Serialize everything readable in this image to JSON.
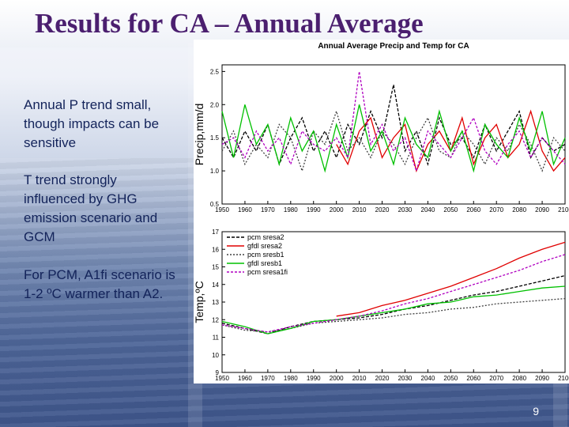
{
  "slide": {
    "title": "Results for CA – Annual Average",
    "bullets": [
      "Annual P trend small, though impacts can be sensitive",
      "T trend strongly influenced by GHG emission scenario and GCM",
      "For PCM, A1fi scenario is 1-2 ºC warmer than A2."
    ],
    "slide_number": "9"
  },
  "colors": {
    "title": "#4b1f6f",
    "bullet_text": "#13235a",
    "pcm_sresa2": "#000000",
    "gfdl_sresa2": "#e00000",
    "pcm_sresb1": "#404040",
    "gfdl_sresb1": "#00c000",
    "pcm_sresa1fi": "#b000c0"
  },
  "chart_data": [
    {
      "type": "line",
      "title": "Annual Average Precip and Temp for CA",
      "ylabel": "Precip,mm/d",
      "xlabel": "",
      "xlim": [
        1950,
        2100
      ],
      "ylim": [
        0.5,
        2.6
      ],
      "xticks": [
        1950,
        1960,
        1970,
        1980,
        1990,
        2000,
        2010,
        2020,
        2030,
        2040,
        2050,
        2060,
        2070,
        2080,
        2090,
        2100
      ],
      "xtick_labels": [
        "1950",
        "1960",
        "1970",
        "1980",
        "1990",
        "2000",
        "2010",
        "2020",
        "2030",
        "2040",
        "2050",
        "2060",
        "2070",
        "2080",
        "2090",
        "2100"
      ],
      "yticks": [
        0.5,
        1.0,
        1.5,
        2.0,
        2.5
      ],
      "ytick_labels": [
        "0.5",
        "1.0",
        "1.5",
        "2.0",
        "2.5"
      ],
      "grid": false,
      "series": [
        {
          "name": "pcm sresa2",
          "color": "#000000",
          "dash": "4,2",
          "x": [
            1950,
            1955,
            1960,
            1965,
            1970,
            1975,
            1980,
            1985,
            1990,
            1995,
            2000,
            2005,
            2010,
            2015,
            2020,
            2025,
            2030,
            2035,
            2040,
            2045,
            2050,
            2055,
            2060,
            2065,
            2070,
            2075,
            2080,
            2085,
            2090,
            2095,
            2100
          ],
          "values": [
            1.5,
            1.2,
            1.6,
            1.3,
            1.7,
            1.1,
            1.5,
            1.8,
            1.3,
            1.6,
            1.2,
            1.7,
            1.4,
            1.9,
            1.5,
            2.3,
            1.3,
            1.6,
            1.1,
            1.8,
            1.4,
            1.5,
            1.2,
            1.7,
            1.3,
            1.6,
            1.9,
            1.2,
            1.5,
            1.3,
            1.4
          ]
        },
        {
          "name": "gfdl sresa2",
          "color": "#e00000",
          "dash": "",
          "x": [
            2000,
            2005,
            2010,
            2015,
            2020,
            2025,
            2030,
            2035,
            2040,
            2045,
            2050,
            2055,
            2060,
            2065,
            2070,
            2075,
            2080,
            2085,
            2090,
            2095,
            2100
          ],
          "values": [
            1.4,
            1.1,
            1.6,
            1.8,
            1.2,
            1.5,
            1.7,
            1.0,
            1.4,
            1.6,
            1.3,
            1.8,
            1.1,
            1.5,
            1.7,
            1.2,
            1.4,
            1.9,
            1.3,
            1.0,
            1.2
          ]
        },
        {
          "name": "pcm sresb1",
          "color": "#404040",
          "dash": "2,2",
          "x": [
            1950,
            1955,
            1960,
            1965,
            1970,
            1975,
            1980,
            1985,
            1990,
            1995,
            2000,
            2005,
            2010,
            2015,
            2020,
            2025,
            2030,
            2035,
            2040,
            2045,
            2050,
            2055,
            2060,
            2065,
            2070,
            2075,
            2080,
            2085,
            2090,
            2095,
            2100
          ],
          "values": [
            1.3,
            1.6,
            1.1,
            1.4,
            1.2,
            1.7,
            1.5,
            1.0,
            1.6,
            1.4,
            1.9,
            1.3,
            1.5,
            1.2,
            1.6,
            1.4,
            1.1,
            1.5,
            1.8,
            1.3,
            1.2,
            1.6,
            1.4,
            1.1,
            1.5,
            1.3,
            1.7,
            1.4,
            1.0,
            1.5,
            1.3
          ]
        },
        {
          "name": "gfdl sresb1",
          "color": "#00c000",
          "dash": "",
          "x": [
            1950,
            1955,
            1960,
            1965,
            1970,
            1975,
            1980,
            1985,
            1990,
            1995,
            2000,
            2005,
            2010,
            2015,
            2020,
            2025,
            2030,
            2035,
            2040,
            2045,
            2050,
            2055,
            2060,
            2065,
            2070,
            2075,
            2080,
            2085,
            2090,
            2095,
            2100
          ],
          "values": [
            1.9,
            1.2,
            2.0,
            1.4,
            1.7,
            1.1,
            1.8,
            1.3,
            1.6,
            1.0,
            1.7,
            1.2,
            2.0,
            1.3,
            1.6,
            1.1,
            1.8,
            1.4,
            1.2,
            1.9,
            1.3,
            1.6,
            1.0,
            1.7,
            1.4,
            1.2,
            1.8,
            1.3,
            1.9,
            1.1,
            1.5
          ]
        },
        {
          "name": "pcm sresa1fi",
          "color": "#b000c0",
          "dash": "3,2",
          "x": [
            1950,
            1955,
            1960,
            1965,
            1970,
            1975,
            1980,
            1985,
            1990,
            1995,
            2000,
            2005,
            2010,
            2015,
            2020,
            2025,
            2030,
            2035,
            2040,
            2045,
            2050,
            2055,
            2060,
            2065,
            2070,
            2075,
            2080,
            2085,
            2090,
            2095,
            2100
          ],
          "values": [
            1.4,
            1.5,
            1.2,
            1.6,
            1.3,
            1.5,
            1.1,
            1.6,
            1.4,
            1.3,
            1.5,
            1.2,
            2.5,
            1.4,
            1.7,
            1.3,
            1.5,
            1.0,
            1.6,
            1.4,
            1.2,
            1.5,
            1.8,
            1.3,
            1.1,
            1.4,
            1.6,
            1.2,
            1.5,
            1.3,
            1.1
          ]
        }
      ]
    },
    {
      "type": "line",
      "title": "",
      "ylabel": "Temp,ºC",
      "xlabel": "",
      "xlim": [
        1950,
        2100
      ],
      "ylim": [
        9,
        17
      ],
      "xticks": [
        1950,
        1960,
        1970,
        1980,
        1990,
        2000,
        2010,
        2020,
        2030,
        2040,
        2050,
        2060,
        2070,
        2080,
        2090,
        2100
      ],
      "xtick_labels": [
        "1950",
        "1960",
        "1970",
        "1980",
        "1990",
        "2000",
        "2010",
        "2020",
        "2030",
        "2040",
        "2050",
        "2060",
        "2070",
        "2080",
        "2090",
        "2100"
      ],
      "yticks": [
        9,
        10,
        11,
        12,
        13,
        14,
        15,
        16,
        17
      ],
      "ytick_labels": [
        "9",
        "10",
        "11",
        "12",
        "13",
        "14",
        "15",
        "16",
        "17"
      ],
      "grid": false,
      "legend_position": "top-left",
      "series": [
        {
          "name": "pcm sresa2",
          "color": "#000000",
          "dash": "4,2",
          "x": [
            1950,
            1960,
            1970,
            1980,
            1990,
            2000,
            2010,
            2020,
            2030,
            2040,
            2050,
            2060,
            2070,
            2080,
            2090,
            2100
          ],
          "values": [
            11.8,
            11.5,
            11.2,
            11.6,
            11.9,
            12.0,
            12.1,
            12.3,
            12.6,
            12.8,
            13.1,
            13.4,
            13.6,
            13.9,
            14.2,
            14.5
          ]
        },
        {
          "name": "gfdl sresa2",
          "color": "#e00000",
          "dash": "",
          "x": [
            2000,
            2010,
            2020,
            2030,
            2040,
            2050,
            2060,
            2070,
            2080,
            2090,
            2100
          ],
          "values": [
            12.2,
            12.4,
            12.8,
            13.1,
            13.5,
            13.9,
            14.4,
            14.9,
            15.5,
            16.0,
            16.4
          ]
        },
        {
          "name": "pcm sresb1",
          "color": "#404040",
          "dash": "2,2",
          "x": [
            1950,
            1960,
            1970,
            1980,
            1990,
            2000,
            2010,
            2020,
            2030,
            2040,
            2050,
            2060,
            2070,
            2080,
            2090,
            2100
          ],
          "values": [
            11.7,
            11.4,
            11.3,
            11.5,
            11.8,
            11.9,
            12.0,
            12.1,
            12.3,
            12.4,
            12.6,
            12.7,
            12.9,
            13.0,
            13.1,
            13.2
          ]
        },
        {
          "name": "gfdl sresb1",
          "color": "#00c000",
          "dash": "",
          "x": [
            1950,
            1960,
            1970,
            1980,
            1990,
            2000,
            2010,
            2020,
            2030,
            2040,
            2050,
            2060,
            2070,
            2080,
            2090,
            2100
          ],
          "values": [
            11.9,
            11.6,
            11.2,
            11.5,
            11.9,
            12.0,
            12.2,
            12.4,
            12.6,
            12.9,
            13.0,
            13.3,
            13.4,
            13.6,
            13.8,
            13.9
          ]
        },
        {
          "name": "pcm sresa1fi",
          "color": "#b000c0",
          "dash": "3,2",
          "x": [
            1950,
            1960,
            1970,
            1980,
            1990,
            2000,
            2010,
            2020,
            2030,
            2040,
            2050,
            2060,
            2070,
            2080,
            2090,
            2100
          ],
          "values": [
            11.7,
            11.5,
            11.3,
            11.6,
            11.8,
            12.0,
            12.2,
            12.5,
            12.9,
            13.2,
            13.6,
            14.0,
            14.4,
            14.8,
            15.3,
            15.7
          ]
        }
      ]
    }
  ]
}
